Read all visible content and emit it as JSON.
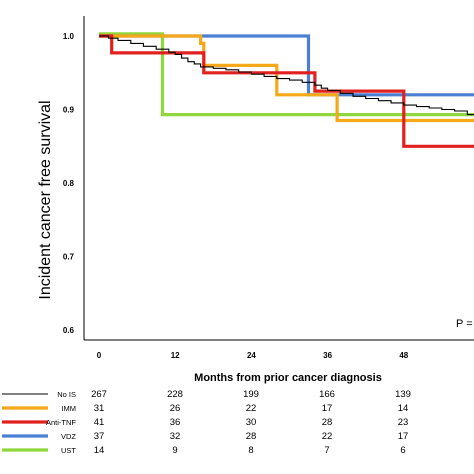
{
  "chart_data": {
    "type": "line",
    "subtype": "kaplan-meier step",
    "ylabel": "Incident cancer free survival",
    "xlabel": "Months from prior cancer diagnosis",
    "xlim": [
      0,
      60
    ],
    "ylim": [
      0.6,
      1.02
    ],
    "x_ticks": [
      "0",
      "12",
      "24",
      "36",
      "48"
    ],
    "y_ticks": [
      "0.6",
      "0.7",
      "0.8",
      "0.9",
      "1.0"
    ],
    "annotation": "P =",
    "series": [
      {
        "name": "No IS",
        "color": "#000000",
        "points": [
          [
            0,
            1.0
          ],
          [
            1.5,
            0.997
          ],
          [
            3,
            0.994
          ],
          [
            5,
            0.99
          ],
          [
            7,
            0.986
          ],
          [
            9,
            0.982
          ],
          [
            11,
            0.978
          ],
          [
            12,
            0.975
          ],
          [
            13,
            0.97
          ],
          [
            14,
            0.965
          ],
          [
            15,
            0.962
          ],
          [
            16,
            0.958
          ],
          [
            18,
            0.956
          ],
          [
            20,
            0.954
          ],
          [
            22,
            0.951
          ],
          [
            24,
            0.948
          ],
          [
            26,
            0.945
          ],
          [
            28,
            0.942
          ],
          [
            30,
            0.94
          ],
          [
            32,
            0.937
          ],
          [
            34,
            0.933
          ],
          [
            35,
            0.929
          ],
          [
            36,
            0.926
          ],
          [
            38,
            0.922
          ],
          [
            40,
            0.918
          ],
          [
            42,
            0.915
          ],
          [
            44,
            0.912
          ],
          [
            46,
            0.909
          ],
          [
            48,
            0.906
          ],
          [
            50,
            0.904
          ],
          [
            52,
            0.902
          ],
          [
            54,
            0.9
          ],
          [
            56,
            0.898
          ],
          [
            58,
            0.893
          ],
          [
            60,
            0.893
          ]
        ]
      },
      {
        "name": "IMM",
        "color": "#F5A818",
        "points": [
          [
            0,
            1.0
          ],
          [
            16,
            1.0
          ],
          [
            16,
            0.99
          ],
          [
            16.5,
            0.99
          ],
          [
            16.5,
            0.96
          ],
          [
            28,
            0.96
          ],
          [
            28,
            0.92
          ],
          [
            37.5,
            0.92
          ],
          [
            37.5,
            0.885
          ],
          [
            60,
            0.885
          ]
        ]
      },
      {
        "name": "Anti-TNF",
        "color": "#E0211F",
        "points": [
          [
            0,
            1.0
          ],
          [
            2,
            1.0
          ],
          [
            2,
            0.977
          ],
          [
            16.5,
            0.977
          ],
          [
            16.5,
            0.95
          ],
          [
            34,
            0.95
          ],
          [
            34,
            0.925
          ],
          [
            48,
            0.925
          ],
          [
            48,
            0.85
          ],
          [
            60,
            0.85
          ]
        ]
      },
      {
        "name": "VDZ",
        "color": "#4A7FD1",
        "points": [
          [
            0,
            1.0
          ],
          [
            33,
            1.0
          ],
          [
            33,
            0.92
          ],
          [
            60,
            0.92
          ]
        ]
      },
      {
        "name": "UST",
        "color": "#8FD83B",
        "points": [
          [
            0,
            1.003
          ],
          [
            10,
            1.003
          ],
          [
            10,
            0.893
          ],
          [
            60,
            0.893
          ]
        ]
      }
    ],
    "legend_placement": "left of risk table",
    "grid": false
  },
  "risk_table": {
    "rows": [
      {
        "name": "No IS",
        "color": "#000000",
        "line": "thin",
        "counts": [
          "267",
          "228",
          "199",
          "166",
          "139"
        ]
      },
      {
        "name": "IMM",
        "color": "#F5A818",
        "line": "thick",
        "counts": [
          "31",
          "26",
          "22",
          "17",
          "14"
        ]
      },
      {
        "name": "Anti-TNF",
        "color": "#E0211F",
        "line": "thick",
        "counts": [
          "41",
          "36",
          "30",
          "28",
          "23"
        ]
      },
      {
        "name": "VDZ",
        "color": "#4A7FD1",
        "line": "thick",
        "counts": [
          "37",
          "32",
          "28",
          "22",
          "17"
        ]
      },
      {
        "name": "UST",
        "color": "#8FD83B",
        "line": "thick",
        "counts": [
          "14",
          "9",
          "8",
          "7",
          "6"
        ]
      }
    ]
  }
}
